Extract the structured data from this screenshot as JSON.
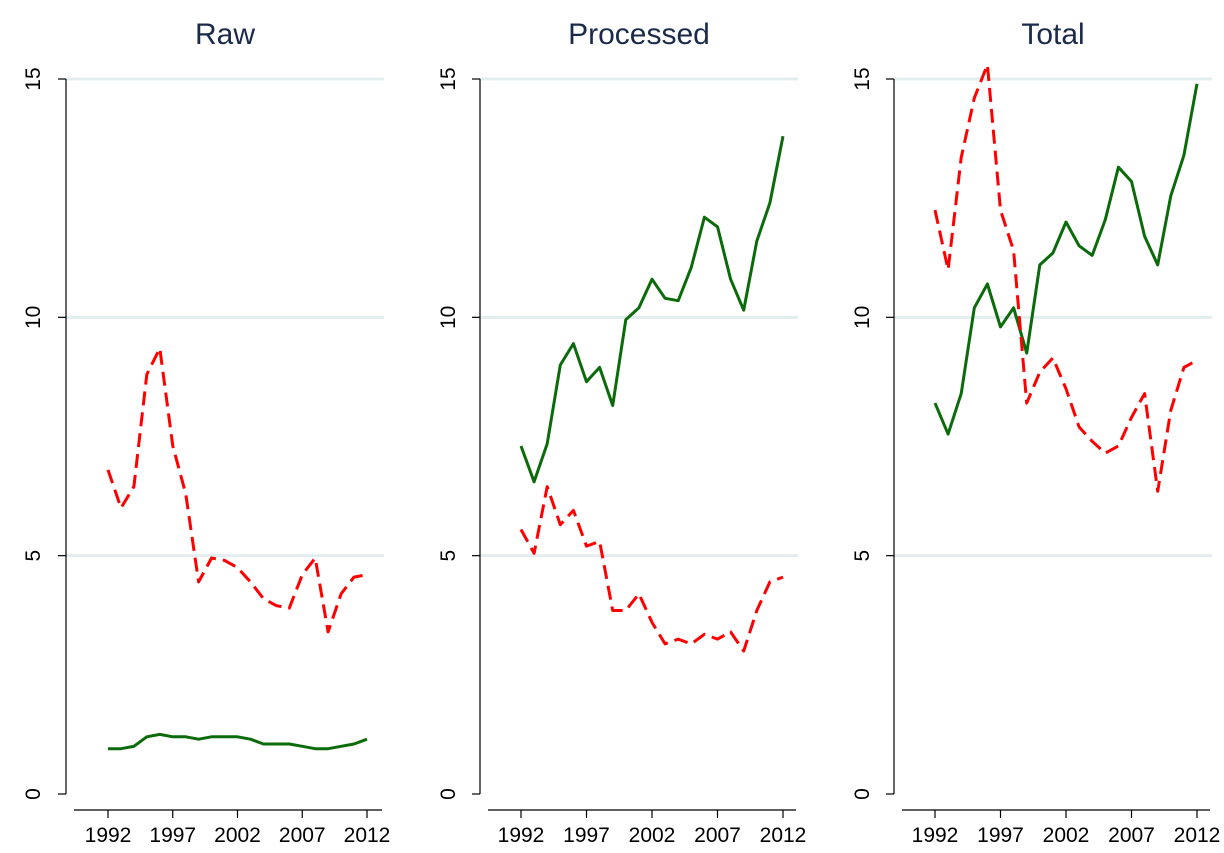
{
  "colors": {
    "green": "#0b6b0b",
    "red": "#ff0000",
    "grid": "#e3ecee",
    "axis": "#000000",
    "title": "#1a2a4a"
  },
  "chart_data": [
    {
      "type": "line",
      "title": "Raw",
      "x": [
        1992,
        1993,
        1994,
        1995,
        1996,
        1997,
        1998,
        1999,
        2000,
        2001,
        2002,
        2003,
        2004,
        2005,
        2006,
        2007,
        2008,
        2009,
        2010,
        2011,
        2012
      ],
      "xticks": [
        "1992",
        "1997",
        "2002",
        "2007",
        "2012"
      ],
      "yticks": [
        "0",
        "5",
        "10",
        "15"
      ],
      "ylim": [
        0,
        15
      ],
      "grid": true,
      "series": [
        {
          "color": "#0b6b0b",
          "style": "solid",
          "values": [
            0.95,
            0.95,
            1.0,
            1.2,
            1.25,
            1.2,
            1.2,
            1.15,
            1.2,
            1.2,
            1.2,
            1.15,
            1.05,
            1.05,
            1.05,
            1.0,
            0.95,
            0.95,
            1.0,
            1.05,
            1.15
          ]
        },
        {
          "color": "#ff0000",
          "style": "dashed",
          "values": [
            6.8,
            6.0,
            6.45,
            8.8,
            9.35,
            7.3,
            6.3,
            4.45,
            4.95,
            4.9,
            4.75,
            4.45,
            4.1,
            3.95,
            3.9,
            4.6,
            4.95,
            3.4,
            4.2,
            4.55,
            4.6
          ]
        }
      ]
    },
    {
      "type": "line",
      "title": "Processed",
      "x": [
        1992,
        1993,
        1994,
        1995,
        1996,
        1997,
        1998,
        1999,
        2000,
        2001,
        2002,
        2003,
        2004,
        2005,
        2006,
        2007,
        2008,
        2009,
        2010,
        2011,
        2012
      ],
      "xticks": [
        "1992",
        "1997",
        "2002",
        "2007",
        "2012"
      ],
      "yticks": [
        "0",
        "5",
        "10",
        "15"
      ],
      "ylim": [
        0,
        15
      ],
      "grid": true,
      "series": [
        {
          "color": "#0b6b0b",
          "style": "solid",
          "values": [
            7.3,
            6.55,
            7.35,
            9.0,
            9.45,
            8.65,
            8.95,
            8.15,
            9.95,
            10.2,
            10.8,
            10.4,
            10.35,
            11.05,
            12.1,
            11.9,
            10.8,
            10.15,
            11.6,
            12.4,
            13.8
          ]
        },
        {
          "color": "#ff0000",
          "style": "dashed",
          "values": [
            5.55,
            5.05,
            6.45,
            5.65,
            5.95,
            5.2,
            5.3,
            3.85,
            3.85,
            4.2,
            3.6,
            3.15,
            3.25,
            3.15,
            3.35,
            3.25,
            3.4,
            3.0,
            3.85,
            4.45,
            4.55
          ]
        }
      ]
    },
    {
      "type": "line",
      "title": "Total",
      "x": [
        1992,
        1993,
        1994,
        1995,
        1996,
        1997,
        1998,
        1999,
        2000,
        2001,
        2002,
        2003,
        2004,
        2005,
        2006,
        2007,
        2008,
        2009,
        2010,
        2011,
        2012
      ],
      "xticks": [
        "1992",
        "1997",
        "2002",
        "2007",
        "2012"
      ],
      "yticks": [
        "0",
        "5",
        "10",
        "15"
      ],
      "ylim": [
        0,
        15
      ],
      "grid": true,
      "series": [
        {
          "color": "#0b6b0b",
          "style": "solid",
          "values": [
            8.2,
            7.55,
            8.4,
            10.2,
            10.7,
            9.8,
            10.2,
            9.25,
            11.1,
            11.35,
            12.0,
            11.5,
            11.3,
            12.05,
            13.15,
            12.85,
            11.7,
            11.1,
            12.55,
            13.4,
            14.9
          ]
        },
        {
          "color": "#ff0000",
          "style": "dashed",
          "values": [
            12.25,
            11.0,
            13.35,
            14.6,
            15.3,
            12.25,
            11.4,
            8.2,
            8.85,
            9.15,
            8.5,
            7.7,
            7.4,
            7.15,
            7.3,
            7.9,
            8.4,
            6.35,
            8.05,
            8.95,
            9.1
          ]
        }
      ]
    }
  ]
}
